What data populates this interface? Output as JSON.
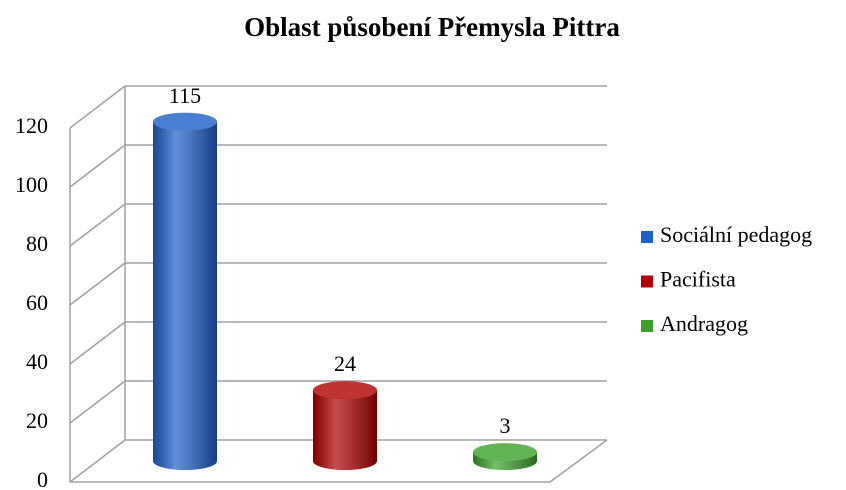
{
  "chart_data": {
    "type": "bar3d",
    "title": "Oblast působení Přemysla Pittra",
    "series": [
      {
        "name": "Sociální pedagog",
        "color": "#1f5fc8",
        "values": [
          115
        ]
      },
      {
        "name": "Pacifista",
        "color": "#b00000",
        "values": [
          24
        ]
      },
      {
        "name": "Andragog",
        "color": "#3aa02a",
        "values": [
          3
        ]
      }
    ],
    "ylim": [
      0,
      120
    ],
    "yticks": [
      0,
      20,
      40,
      60,
      80,
      100,
      120
    ],
    "grid": true,
    "legend": "right"
  }
}
